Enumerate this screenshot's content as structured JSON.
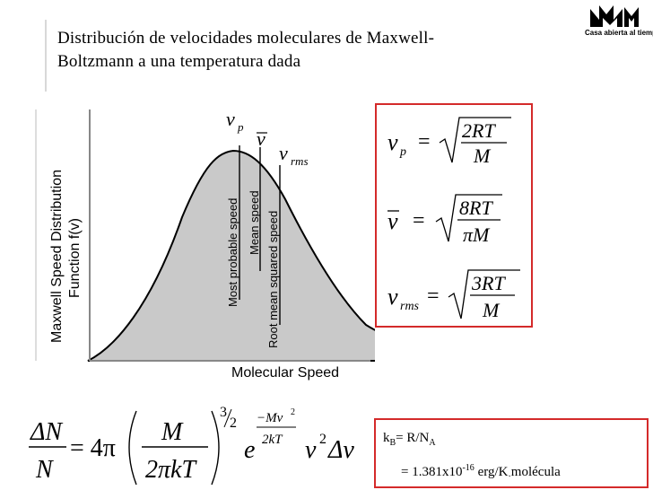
{
  "slide": {
    "title_line1": "Distribución de velocidades moleculares de Maxwell-",
    "title_line2": "Boltzmann a una temperatura dada"
  },
  "logo": {
    "tagline": "Casa abierta al tiempo"
  },
  "figure": {
    "y_axis_label_line1": "Maxwell Speed Distribution",
    "y_axis_label_line2": "Function f(v)",
    "x_axis_label": "Molecular Speed",
    "annotations": [
      "Most probable speed",
      "Mean speed",
      "Root mean squared speed"
    ],
    "marker_symbols": {
      "vp": "v",
      "vp_sub": "p",
      "vbar": "v",
      "vrms": "v",
      "vrms_sub": "rms"
    }
  },
  "formulas": {
    "vp": {
      "lhs": "v",
      "sub": "p",
      "num": "2RT",
      "den": "M"
    },
    "vbar": {
      "lhs": "v",
      "num": "8RT",
      "den": "πM"
    },
    "vrms": {
      "lhs": "v",
      "sub": "rms",
      "num": "3RT",
      "den": "M"
    }
  },
  "main_equation": {
    "lhs_num": "ΔN",
    "lhs_den": "N",
    "eq": "= 4π",
    "frac_num": "M",
    "frac_den": "2πkT",
    "exp_power_num": "3",
    "exp_power_den": "2",
    "e": "e",
    "exp_num": "−Mv",
    "exp_num_sup": "2",
    "exp_den": "2kT",
    "tail": "v",
    "tail_sup": "2",
    "tail_end": "Δv"
  },
  "constants": {
    "kb_label": "k",
    "kb_sub": "B",
    "kb_rhs": "= R/N",
    "kb_rhs_sub": "A",
    "value_prefix": "= 1.381x10",
    "value_exp": "-16",
    "value_unit": " erg/K",
    "value_dot": "·",
    "value_suffix": "molécula"
  }
}
